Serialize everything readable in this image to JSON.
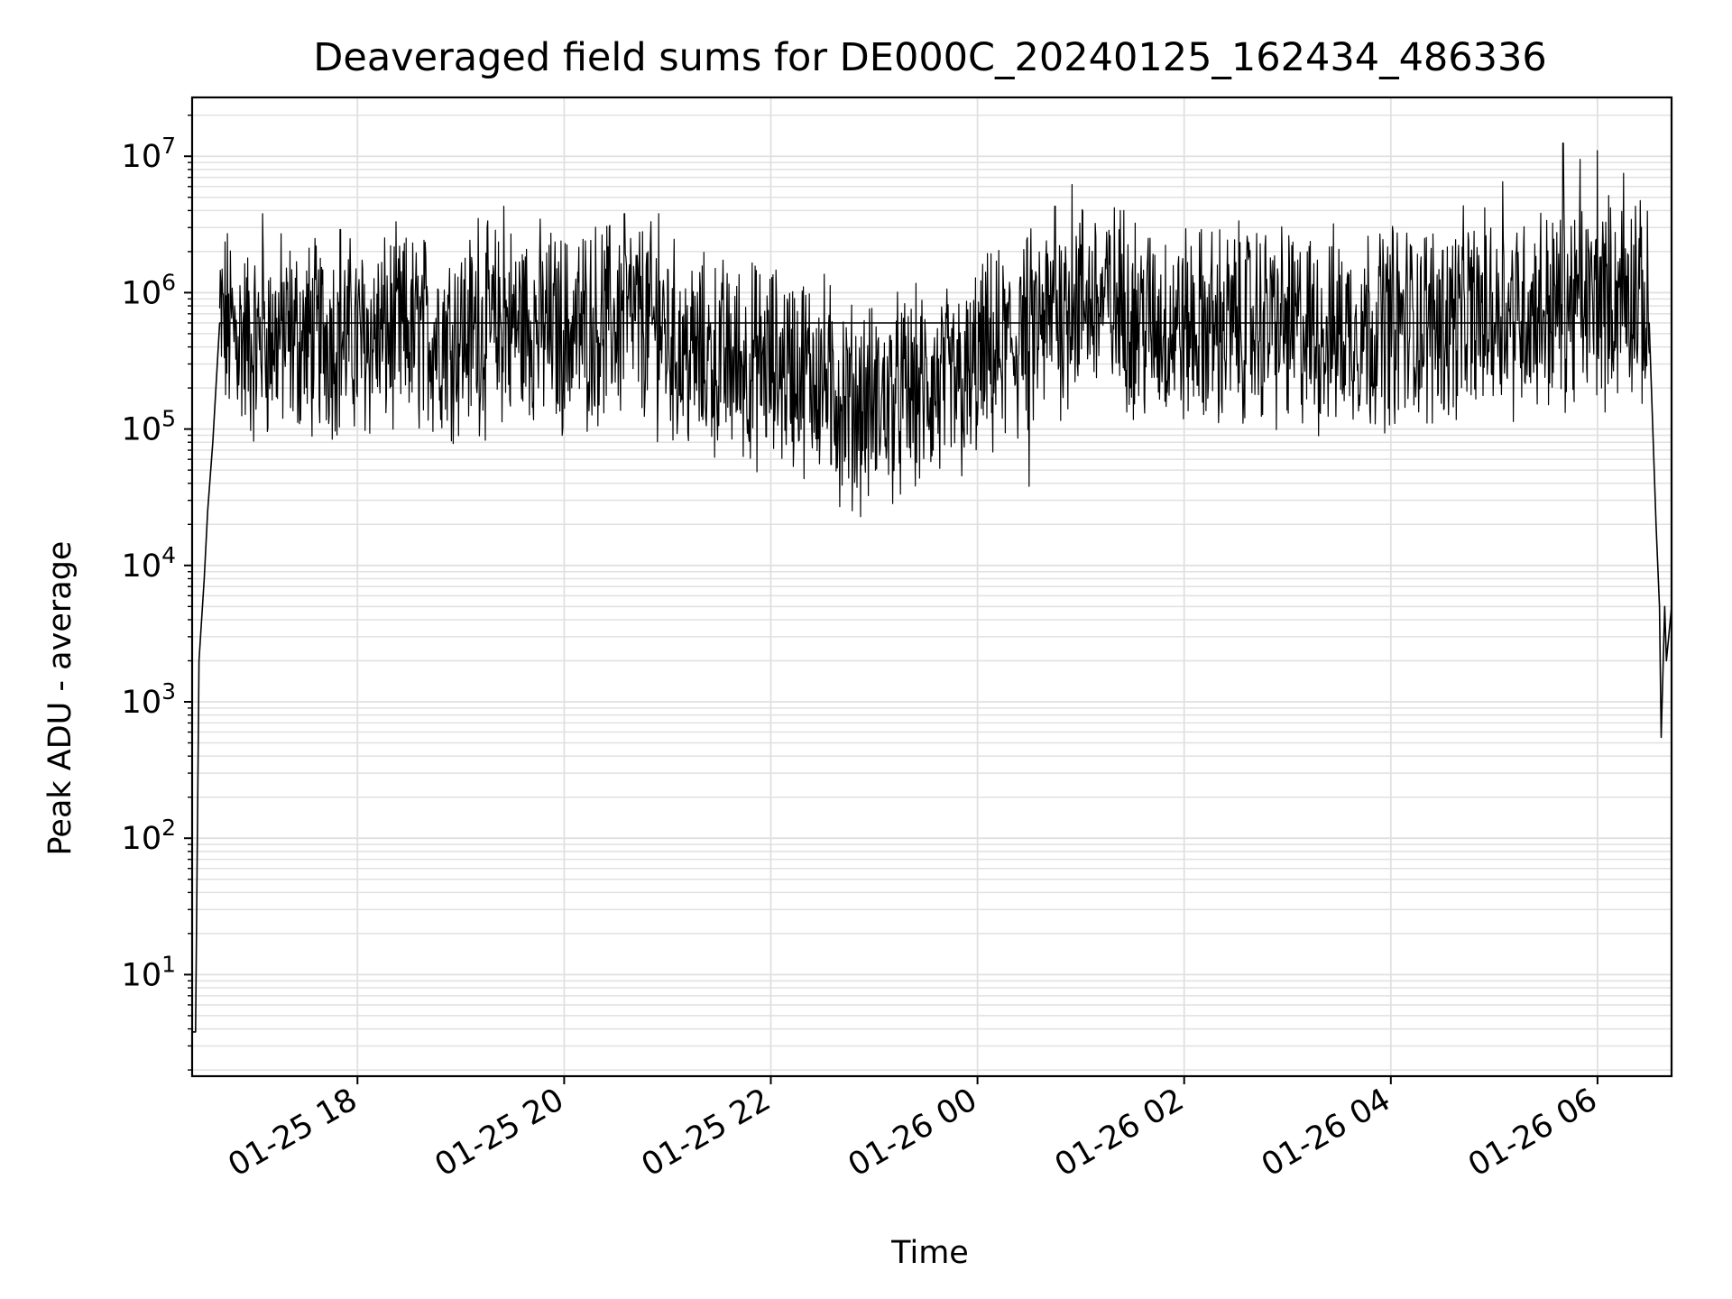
{
  "chart_data": {
    "type": "line",
    "title": "Deaveraged field sums for DE000C_20240125_162434_486336",
    "xlabel": "Time",
    "ylabel": "Peak ADU - average",
    "yscale": "log",
    "grid": true,
    "line_color": "#000000",
    "grid_color": "#e0e0e0",
    "xlim": [
      "2024-01-25 16:24",
      "2024-01-26 06:43"
    ],
    "ylim": [
      1.8,
      27000000
    ],
    "x_ticks": [
      {
        "label": "01-25 18",
        "value": "2024-01-25 18:00"
      },
      {
        "label": "01-25 20",
        "value": "2024-01-25 20:00"
      },
      {
        "label": "01-25 22",
        "value": "2024-01-25 22:00"
      },
      {
        "label": "01-26 00",
        "value": "2024-01-26 00:00"
      },
      {
        "label": "01-26 02",
        "value": "2024-01-26 02:00"
      },
      {
        "label": "01-26 04",
        "value": "2024-01-26 04:00"
      },
      {
        "label": "01-26 06",
        "value": "2024-01-26 06:00"
      }
    ],
    "y_ticks": [
      {
        "base": "10",
        "exp": "1",
        "value": 10
      },
      {
        "base": "10",
        "exp": "2",
        "value": 100
      },
      {
        "base": "10",
        "exp": "3",
        "value": 1000
      },
      {
        "base": "10",
        "exp": "4",
        "value": 10000
      },
      {
        "base": "10",
        "exp": "5",
        "value": 100000
      },
      {
        "base": "10",
        "exp": "6",
        "value": 1000000
      },
      {
        "base": "10",
        "exp": "7",
        "value": 10000000
      }
    ],
    "series": [
      {
        "points": [
          [
            "2024-01-25 16:24",
            3.8
          ],
          [
            "2024-01-25 16:26",
            3.8
          ],
          [
            "2024-01-25 16:28",
            2000
          ],
          [
            "2024-01-25 16:31",
            8000
          ],
          [
            "2024-01-25 16:33",
            25000
          ],
          [
            "2024-01-25 16:36",
            80000
          ],
          [
            "2024-01-25 16:40",
            600000
          ],
          [
            "2024-01-25 16:50",
            500000
          ],
          [
            "2024-01-25 17:00",
            400000
          ],
          [
            "2024-01-25 17:15",
            500000
          ],
          [
            "2024-01-25 17:30",
            450000
          ],
          [
            "2024-01-25 17:45",
            500000
          ],
          [
            "2024-01-25 18:00",
            450000
          ],
          [
            "2024-01-25 18:20",
            500000
          ],
          [
            "2024-01-25 18:40",
            500000
          ],
          [
            "2024-01-25 19:00",
            500000
          ],
          [
            "2024-01-25 19:20",
            550000
          ],
          [
            "2024-01-25 19:40",
            600000
          ],
          [
            "2024-01-25 20:00",
            500000
          ],
          [
            "2024-01-25 20:20",
            600000
          ],
          [
            "2024-01-25 20:40",
            650000
          ],
          [
            "2024-01-25 20:55",
            550000
          ],
          [
            "2024-01-25 21:10",
            350000
          ],
          [
            "2024-01-25 21:30",
            320000
          ],
          [
            "2024-01-25 21:50",
            300000
          ],
          [
            "2024-01-25 22:10",
            280000
          ],
          [
            "2024-01-25 22:30",
            250000
          ],
          [
            "2024-01-25 22:45",
            150000
          ],
          [
            "2024-01-25 23:00",
            150000
          ],
          [
            "2024-01-25 23:20",
            180000
          ],
          [
            "2024-01-25 23:40",
            200000
          ],
          [
            "2024-01-25 23:55",
            200000
          ],
          [
            "2024-01-26 00:00",
            300000
          ],
          [
            "2024-01-26 00:20",
            400000
          ],
          [
            "2024-01-26 00:40",
            600000
          ],
          [
            "2024-01-26 01:00",
            900000
          ],
          [
            "2024-01-26 01:20",
            800000
          ],
          [
            "2024-01-26 01:40",
            600000
          ],
          [
            "2024-01-26 02:00",
            550000
          ],
          [
            "2024-01-26 02:20",
            550000
          ],
          [
            "2024-01-26 02:40",
            600000
          ],
          [
            "2024-01-26 03:00",
            550000
          ],
          [
            "2024-01-26 03:20",
            500000
          ],
          [
            "2024-01-26 03:40",
            550000
          ],
          [
            "2024-01-26 04:00",
            600000
          ],
          [
            "2024-01-26 04:20",
            600000
          ],
          [
            "2024-01-26 04:40",
            650000
          ],
          [
            "2024-01-26 05:00",
            700000
          ],
          [
            "2024-01-26 05:20",
            750000
          ],
          [
            "2024-01-26 05:40",
            800000
          ],
          [
            "2024-01-26 06:00",
            850000
          ],
          [
            "2024-01-26 06:20",
            1000000
          ],
          [
            "2024-01-26 06:30",
            600000
          ],
          [
            "2024-01-26 06:34",
            20000
          ],
          [
            "2024-01-26 06:36",
            5000
          ],
          [
            "2024-01-26 06:37",
            550
          ],
          [
            "2024-01-26 06:39",
            5000
          ],
          [
            "2024-01-26 06:40",
            2000
          ],
          [
            "2024-01-26 06:43",
            5000
          ]
        ],
        "spikes": [
          [
            "2024-01-25 17:05",
            3800000
          ],
          [
            "2024-01-25 17:50",
            2900000
          ],
          [
            "2024-01-25 19:10",
            3500000
          ],
          [
            "2024-01-25 19:25",
            4300000
          ],
          [
            "2024-01-25 20:35",
            3800000
          ],
          [
            "2024-01-25 20:55",
            3800000
          ],
          [
            "2024-01-26 00:25",
            1300000
          ],
          [
            "2024-01-26 00:45",
            4300000
          ],
          [
            "2024-01-26 00:55",
            6200000
          ],
          [
            "2024-01-26 01:25",
            4000000
          ],
          [
            "2024-01-26 02:50",
            1800000
          ],
          [
            "2024-01-26 05:05",
            6500000
          ],
          [
            "2024-01-26 05:40",
            12500000
          ],
          [
            "2024-01-26 05:50",
            9500000
          ],
          [
            "2024-01-26 06:00",
            11000000
          ],
          [
            "2024-01-26 06:15",
            7500000
          ],
          [
            "2024-01-26 06:22",
            4300000
          ],
          [
            "2024-01-25 22:35",
            55000
          ],
          [
            "2024-01-25 22:40",
            27000
          ],
          [
            "2024-01-26 00:30",
            38000
          ]
        ]
      }
    ]
  }
}
